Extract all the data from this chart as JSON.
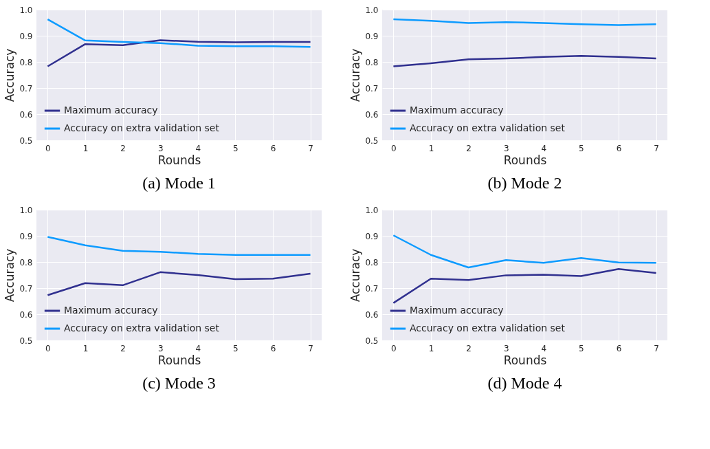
{
  "chart_data": [
    {
      "type": "line",
      "title": "(a) Mode 1",
      "xlabel": "Rounds",
      "ylabel": "Accuracy",
      "x": [
        0,
        1,
        2,
        3,
        4,
        5,
        6,
        7
      ],
      "xlim": [
        -0.3,
        7.3
      ],
      "xticks": [
        0,
        1,
        2,
        3,
        4,
        5,
        6,
        7
      ],
      "ylim": [
        0.5,
        1.0
      ],
      "yticks": [
        {
          "value": 0.5,
          "label": "0.5"
        },
        {
          "value": 0.6,
          "label": "0.6"
        },
        {
          "value": 0.7,
          "label": "0.7"
        },
        {
          "value": 0.8,
          "label": "0.8"
        },
        {
          "value": 0.9,
          "label": "0.9"
        },
        {
          "value": 1.0,
          "label": "1.0"
        }
      ],
      "grid": true,
      "legend": "bottom left",
      "series": [
        {
          "name": "Maximum accuracy",
          "color": "#30308f",
          "values": [
            0.783,
            0.868,
            0.864,
            0.883,
            0.877,
            0.875,
            0.876,
            0.876
          ]
        },
        {
          "name": "Accuracy on extra validation set",
          "color": "#0d9bff",
          "values": [
            0.963,
            0.882,
            0.876,
            0.872,
            0.862,
            0.86,
            0.86,
            0.857
          ]
        }
      ]
    },
    {
      "type": "line",
      "title": "(b) Mode 2",
      "xlabel": "Rounds",
      "ylabel": "Accuracy",
      "x": [
        0,
        1,
        2,
        3,
        4,
        5,
        6,
        7
      ],
      "xlim": [
        -0.3,
        7.3
      ],
      "xticks": [
        0,
        1,
        2,
        3,
        4,
        5,
        6,
        7
      ],
      "ylim": [
        0.5,
        1.0
      ],
      "yticks": [
        {
          "value": 0.5,
          "label": "0.5"
        },
        {
          "value": 0.6,
          "label": "0.6"
        },
        {
          "value": 0.7,
          "label": "0.7"
        },
        {
          "value": 0.8,
          "label": "0.8"
        },
        {
          "value": 0.9,
          "label": "0.9"
        },
        {
          "value": 1.0,
          "label": "1.0"
        }
      ],
      "grid": true,
      "legend": "bottom left",
      "series": [
        {
          "name": "Maximum accuracy",
          "color": "#30308f",
          "values": [
            0.783,
            0.795,
            0.81,
            0.813,
            0.819,
            0.823,
            0.819,
            0.813
          ]
        },
        {
          "name": "Accuracy on extra validation set",
          "color": "#0d9bff",
          "values": [
            0.963,
            0.957,
            0.949,
            0.952,
            0.949,
            0.944,
            0.941,
            0.944
          ]
        }
      ]
    },
    {
      "type": "line",
      "title": "(c) Mode 3",
      "xlabel": "Rounds",
      "ylabel": "Accuracy",
      "x": [
        0,
        1,
        2,
        3,
        4,
        5,
        6,
        7
      ],
      "xlim": [
        -0.3,
        7.3
      ],
      "xticks": [
        0,
        1,
        2,
        3,
        4,
        5,
        6,
        7
      ],
      "ylim": [
        0.5,
        1.0
      ],
      "yticks": [
        {
          "value": 0.5,
          "label": "0.5"
        },
        {
          "value": 0.6,
          "label": "0.6"
        },
        {
          "value": 0.7,
          "label": "0.7"
        },
        {
          "value": 0.8,
          "label": "0.8"
        },
        {
          "value": 0.9,
          "label": "0.9"
        },
        {
          "value": 1.0,
          "label": "1.0"
        }
      ],
      "grid": true,
      "legend": "bottom left",
      "series": [
        {
          "name": "Maximum accuracy",
          "color": "#30308f",
          "values": [
            0.673,
            0.719,
            0.711,
            0.761,
            0.75,
            0.734,
            0.736,
            0.755
          ]
        },
        {
          "name": "Accuracy on extra validation set",
          "color": "#0d9bff",
          "values": [
            0.896,
            0.864,
            0.843,
            0.839,
            0.831,
            0.827,
            0.827,
            0.827
          ]
        }
      ]
    },
    {
      "type": "line",
      "title": "(d) Mode 4",
      "xlabel": "Rounds",
      "ylabel": "Accuracy",
      "x": [
        0,
        1,
        2,
        3,
        4,
        5,
        6,
        7
      ],
      "xlim": [
        -0.3,
        7.3
      ],
      "xticks": [
        0,
        1,
        2,
        3,
        4,
        5,
        6,
        7
      ],
      "ylim": [
        0.5,
        1.0
      ],
      "yticks": [
        {
          "value": 0.5,
          "label": "0.5"
        },
        {
          "value": 0.6,
          "label": "0.6"
        },
        {
          "value": 0.7,
          "label": "0.7"
        },
        {
          "value": 0.8,
          "label": "0.8"
        },
        {
          "value": 0.9,
          "label": "0.9"
        },
        {
          "value": 1.0,
          "label": "1.0"
        }
      ],
      "grid": true,
      "legend": "bottom left",
      "series": [
        {
          "name": "Maximum accuracy",
          "color": "#30308f",
          "values": [
            0.643,
            0.736,
            0.731,
            0.749,
            0.751,
            0.746,
            0.773,
            0.758
          ]
        },
        {
          "name": "Accuracy on extra validation set",
          "color": "#0d9bff",
          "values": [
            0.902,
            0.827,
            0.779,
            0.807,
            0.797,
            0.815,
            0.798,
            0.797
          ]
        }
      ]
    }
  ]
}
